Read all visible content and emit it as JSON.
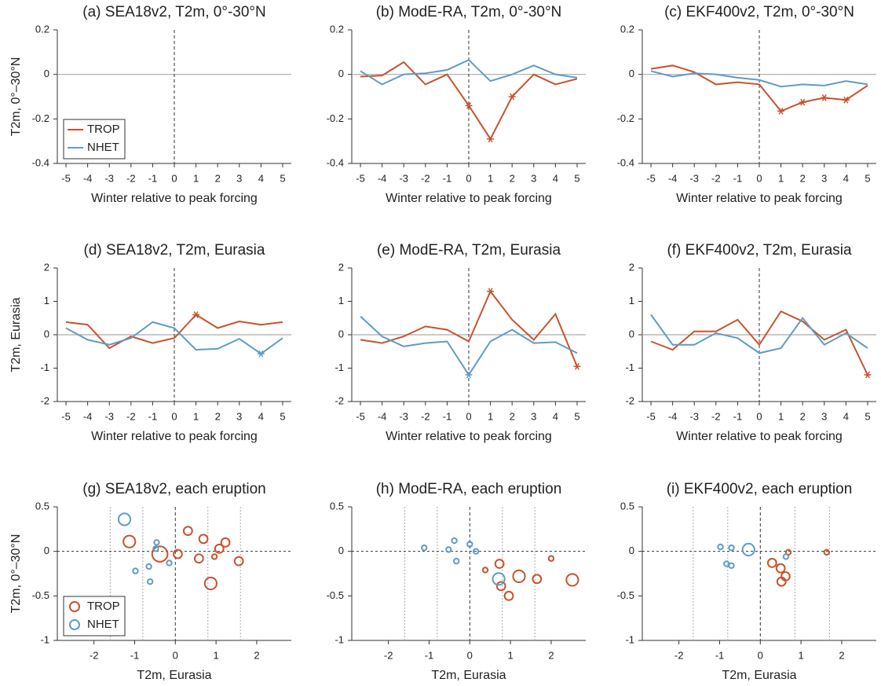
{
  "chart_data": [
    {
      "type": "line",
      "title": "(a) SEA18v2, T2m, 0°-30°N",
      "xlabel": "Winter relative to peak forcing",
      "ylabel": "T2m, 0°–30°N",
      "x": [
        -5,
        -4,
        -3,
        -2,
        -1,
        0,
        1,
        2,
        3,
        4,
        5
      ],
      "xlim": [
        -5.4,
        5.4
      ],
      "xticks": [
        -5,
        -4,
        -3,
        -2,
        -1,
        0,
        1,
        2,
        3,
        4,
        5
      ],
      "ylim": [
        -0.4,
        0.2
      ],
      "yticks": [
        -0.4,
        -0.2,
        0,
        0.2
      ],
      "legend": "lower left",
      "series": [
        {
          "name": "TROP",
          "color": "#c9522c",
          "values": [
            null,
            null,
            null,
            null,
            null,
            null,
            null,
            null,
            null,
            null,
            null
          ]
        },
        {
          "name": "NHET",
          "color": "#5f9cc4",
          "values": [
            null,
            null,
            null,
            null,
            null,
            null,
            null,
            null,
            null,
            null,
            null
          ]
        }
      ]
    },
    {
      "type": "line",
      "title": "(b) ModE-RA, T2m, 0°-30°N",
      "xlabel": "Winter relative to peak forcing",
      "x": [
        -5,
        -4,
        -3,
        -2,
        -1,
        0,
        1,
        2,
        3,
        4,
        5
      ],
      "xlim": [
        -5.4,
        5.4
      ],
      "xticks": [
        -5,
        -4,
        -3,
        -2,
        -1,
        0,
        1,
        2,
        3,
        4,
        5
      ],
      "ylim": [
        -0.4,
        0.2
      ],
      "yticks": [
        -0.4,
        -0.2,
        0,
        0.2
      ],
      "series": [
        {
          "color": "#c9522c",
          "values": [
            -0.01,
            -0.005,
            0.055,
            -0.045,
            0.0,
            -0.14,
            -0.29,
            -0.1,
            0.0,
            -0.045,
            -0.02
          ],
          "significant": [
            false,
            false,
            false,
            false,
            false,
            true,
            true,
            true,
            false,
            false,
            false
          ]
        },
        {
          "color": "#5f9cc4",
          "values": [
            0.015,
            -0.045,
            0.0,
            0.005,
            0.02,
            0.065,
            -0.03,
            0.0,
            0.04,
            0.0,
            -0.015
          ],
          "significant": [
            false,
            false,
            false,
            false,
            false,
            false,
            false,
            false,
            false,
            false,
            false
          ]
        }
      ]
    },
    {
      "type": "line",
      "title": "(c) EKF400v2, T2m, 0°-30°N",
      "xlabel": "Winter relative to peak forcing",
      "x": [
        -5,
        -4,
        -3,
        -2,
        -1,
        0,
        1,
        2,
        3,
        4,
        5
      ],
      "xlim": [
        -5.4,
        5.4
      ],
      "xticks": [
        -5,
        -4,
        -3,
        -2,
        -1,
        0,
        1,
        2,
        3,
        4,
        5
      ],
      "ylim": [
        -0.4,
        0.2
      ],
      "yticks": [
        -0.4,
        -0.2,
        0,
        0.2
      ],
      "series": [
        {
          "color": "#c9522c",
          "values": [
            0.025,
            0.04,
            0.01,
            -0.045,
            -0.035,
            -0.045,
            -0.165,
            -0.125,
            -0.105,
            -0.115,
            -0.05
          ],
          "significant": [
            false,
            false,
            false,
            false,
            false,
            false,
            true,
            true,
            true,
            true,
            false
          ]
        },
        {
          "color": "#5f9cc4",
          "values": [
            0.015,
            -0.01,
            0.005,
            0.0,
            -0.015,
            -0.025,
            -0.055,
            -0.045,
            -0.05,
            -0.03,
            -0.045
          ],
          "significant": [
            false,
            false,
            false,
            false,
            false,
            false,
            false,
            false,
            false,
            false,
            false
          ]
        }
      ]
    },
    {
      "type": "line",
      "title": "(d) SEA18v2, T2m, Eurasia",
      "xlabel": "Winter relative to peak forcing",
      "ylabel": "T2m, Eurasia",
      "x": [
        -5,
        -4,
        -3,
        -2,
        -1,
        0,
        1,
        2,
        3,
        4,
        5
      ],
      "xlim": [
        -5.4,
        5.4
      ],
      "xticks": [
        -5,
        -4,
        -3,
        -2,
        -1,
        0,
        1,
        2,
        3,
        4,
        5
      ],
      "ylim": [
        -2,
        2
      ],
      "yticks": [
        -2,
        -1,
        0,
        1,
        2
      ],
      "series": [
        {
          "color": "#c9522c",
          "values": [
            0.38,
            0.3,
            -0.4,
            -0.05,
            -0.25,
            -0.1,
            0.6,
            0.2,
            0.4,
            0.3,
            0.38
          ],
          "significant": [
            false,
            false,
            false,
            false,
            false,
            false,
            true,
            false,
            false,
            false,
            false
          ]
        },
        {
          "color": "#5f9cc4",
          "values": [
            0.2,
            -0.15,
            -0.3,
            -0.1,
            0.38,
            0.2,
            -0.45,
            -0.42,
            -0.12,
            -0.57,
            -0.1
          ],
          "significant": [
            false,
            false,
            false,
            false,
            false,
            false,
            false,
            false,
            false,
            true,
            false
          ]
        }
      ]
    },
    {
      "type": "line",
      "title": "(e) ModE-RA, T2m, Eurasia",
      "xlabel": "Winter relative to peak forcing",
      "x": [
        -5,
        -4,
        -3,
        -2,
        -1,
        0,
        1,
        2,
        3,
        4,
        5
      ],
      "xlim": [
        -5.4,
        5.4
      ],
      "xticks": [
        -5,
        -4,
        -3,
        -2,
        -1,
        0,
        1,
        2,
        3,
        4,
        5
      ],
      "ylim": [
        -2,
        2
      ],
      "yticks": [
        -2,
        -1,
        0,
        1,
        2
      ],
      "series": [
        {
          "color": "#c9522c",
          "values": [
            -0.15,
            -0.25,
            -0.05,
            0.25,
            0.15,
            -0.2,
            1.3,
            0.45,
            -0.15,
            0.62,
            -0.95
          ],
          "significant": [
            false,
            false,
            false,
            false,
            false,
            false,
            true,
            false,
            false,
            false,
            true
          ]
        },
        {
          "color": "#5f9cc4",
          "values": [
            0.55,
            -0.05,
            -0.35,
            -0.25,
            -0.2,
            -1.2,
            -0.2,
            0.15,
            -0.25,
            -0.22,
            -0.55
          ],
          "significant": [
            false,
            false,
            false,
            false,
            false,
            true,
            false,
            false,
            false,
            false,
            false
          ]
        }
      ]
    },
    {
      "type": "line",
      "title": "(f) EKF400v2, T2m, Eurasia",
      "xlabel": "Winter relative to peak forcing",
      "x": [
        -5,
        -4,
        -3,
        -2,
        -1,
        0,
        1,
        2,
        3,
        4,
        5
      ],
      "xlim": [
        -5.4,
        5.4
      ],
      "xticks": [
        -5,
        -4,
        -3,
        -2,
        -1,
        0,
        1,
        2,
        3,
        4,
        5
      ],
      "ylim": [
        -2,
        2
      ],
      "yticks": [
        -2,
        -1,
        0,
        1,
        2
      ],
      "series": [
        {
          "color": "#c9522c",
          "values": [
            -0.2,
            -0.45,
            0.1,
            0.1,
            0.45,
            -0.3,
            0.7,
            0.4,
            -0.15,
            0.15,
            -1.2
          ],
          "significant": [
            false,
            false,
            false,
            false,
            false,
            false,
            false,
            false,
            false,
            false,
            true
          ]
        },
        {
          "color": "#5f9cc4",
          "values": [
            0.6,
            -0.3,
            -0.3,
            0.05,
            -0.1,
            -0.55,
            -0.4,
            0.5,
            -0.3,
            0.05,
            -0.4
          ],
          "significant": [
            false,
            false,
            false,
            false,
            false,
            false,
            false,
            false,
            false,
            false,
            false
          ]
        }
      ]
    },
    {
      "type": "scatter",
      "title": "(g) SEA18v2, each eruption",
      "xlabel": "T2m, Eurasia",
      "ylabel": "T2m, 0°–30°N",
      "xlim": [
        -2.9,
        2.85
      ],
      "xticks": [
        -2,
        -1,
        0,
        1,
        2
      ],
      "ylim": [
        -1,
        0.5
      ],
      "yticks": [
        -1,
        -0.5,
        0,
        0.5
      ],
      "reference_lines": [
        -1.6,
        -0.8,
        0.8,
        1.6
      ],
      "legend": "lower left",
      "series": [
        {
          "name": "TROP",
          "color": "#c9522c",
          "x": [
            -1.13,
            0.31,
            -0.38,
            0.69,
            1.23,
            1.08,
            0.06,
            0.58,
            0.96,
            0.87,
            1.56
          ],
          "values": [
            0.11,
            0.23,
            -0.03,
            0.14,
            0.1,
            0.03,
            -0.03,
            -0.08,
            -0.06,
            -0.36,
            -0.11
          ],
          "sizes": [
            3,
            2,
            4,
            2,
            2,
            2,
            2,
            2,
            1,
            3,
            2
          ]
        },
        {
          "name": "NHET",
          "color": "#5f9cc4",
          "x": [
            -1.25,
            -0.46,
            -0.48,
            -0.98,
            -0.65,
            -0.62,
            -0.15
          ],
          "values": [
            0.36,
            0.1,
            0.03,
            -0.22,
            -0.17,
            -0.34,
            -0.13
          ],
          "sizes": [
            3,
            1,
            1,
            1,
            1,
            1,
            1
          ]
        }
      ]
    },
    {
      "type": "scatter",
      "title": "(h) ModE-RA, each eruption",
      "xlabel": "T2m, Eurasia",
      "xlim": [
        -2.9,
        2.85
      ],
      "xticks": [
        -2,
        -1,
        0,
        1,
        2
      ],
      "ylim": [
        -1,
        0.5
      ],
      "yticks": [
        -1,
        -0.5,
        0,
        0.5
      ],
      "reference_lines": [
        -1.6,
        -0.8,
        0.8,
        1.6
      ],
      "series": [
        {
          "color": "#c9522c",
          "x": [
            1.21,
            0.73,
            0.77,
            0.96,
            1.65,
            2.52,
            2.0,
            0.38
          ],
          "values": [
            -0.28,
            -0.14,
            -0.39,
            -0.5,
            -0.31,
            -0.32,
            -0.08,
            -0.21
          ],
          "sizes": [
            3,
            2,
            2,
            2,
            2,
            3,
            1,
            1
          ]
        },
        {
          "color": "#5f9cc4",
          "x": [
            -1.12,
            -0.38,
            -0.33,
            -0.52,
            0.0,
            0.15,
            0.71
          ],
          "values": [
            0.04,
            0.12,
            -0.11,
            0.02,
            0.08,
            0.0,
            -0.31
          ],
          "sizes": [
            1,
            1,
            1,
            1,
            1,
            1,
            3
          ]
        }
      ]
    },
    {
      "type": "scatter",
      "title": "(i) EKF400v2, each eruption",
      "xlabel": "T2m, Eurasia",
      "xlim": [
        -2.9,
        2.85
      ],
      "xticks": [
        -2,
        -1,
        0,
        1,
        2
      ],
      "ylim": [
        -1,
        0.5
      ],
      "yticks": [
        -1,
        -0.5,
        0,
        0.5
      ],
      "reference_lines": [
        -1.65,
        -0.8,
        0.85,
        1.7
      ],
      "series": [
        {
          "color": "#c9522c",
          "x": [
            1.63,
            0.69,
            0.29,
            0.5,
            0.62,
            0.52
          ],
          "values": [
            -0.01,
            -0.01,
            -0.13,
            -0.19,
            -0.28,
            -0.34
          ],
          "sizes": [
            1,
            1,
            2,
            2,
            2,
            2
          ]
        },
        {
          "color": "#5f9cc4",
          "x": [
            -0.29,
            -0.98,
            -0.71,
            -0.83,
            -0.71,
            0.63
          ],
          "values": [
            0.02,
            0.05,
            0.04,
            -0.14,
            -0.16,
            -0.06
          ],
          "sizes": [
            3,
            1,
            1,
            1,
            1,
            1
          ]
        }
      ]
    }
  ]
}
